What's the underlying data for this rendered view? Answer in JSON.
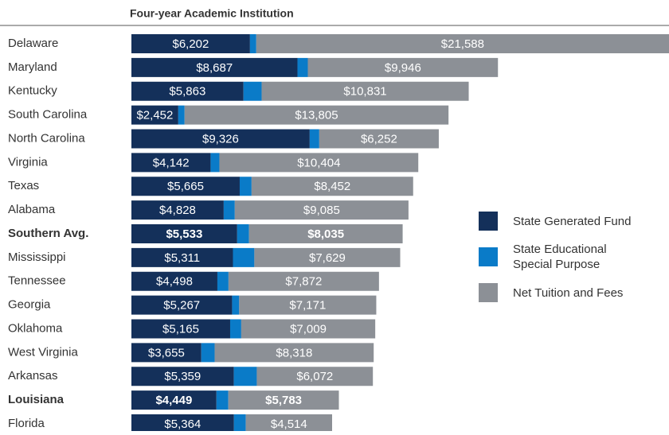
{
  "chart_data": {
    "type": "stacked-bar-horizontal",
    "title": "Four-year Academic Institution",
    "categories": [
      "Delaware",
      "Maryland",
      "Kentucky",
      "South Carolina",
      "North Carolina",
      "Virginia",
      "Texas",
      "Alabama",
      "Southern Avg.",
      "Mississippi",
      "Tennessee",
      "Georgia",
      "Oklahoma",
      "West Virginia",
      "Arkansas",
      "Louisiana",
      "Florida"
    ],
    "highlight": [
      8,
      15
    ],
    "series": [
      {
        "name": "State Generated Fund",
        "color": "#14305a",
        "values": [
          6202,
          8687,
          5863,
          2452,
          9326,
          4142,
          5665,
          4828,
          5533,
          5311,
          4498,
          5267,
          5165,
          3655,
          5359,
          4449,
          5364
        ],
        "value_labels": [
          "$6,202",
          "$8,687",
          "$5,863",
          "$2,452",
          "$9,326",
          "$4,142",
          "$5,665",
          "$4,828",
          "$5,533",
          "$5,311",
          "$4,498",
          "$5,267",
          "$5,165",
          "$3,655",
          "$5,359",
          "$4,449",
          "$5,364"
        ]
      },
      {
        "name": "State Educational Special Purpose",
        "color": "#0a7bc8",
        "values": [
          330,
          540,
          950,
          330,
          500,
          460,
          620,
          580,
          620,
          1120,
          580,
          370,
          580,
          700,
          1200,
          620,
          620
        ]
      },
      {
        "name": "Net Tuition and Fees",
        "color": "#8c9096",
        "values": [
          21588,
          9946,
          10831,
          13805,
          6252,
          10404,
          8452,
          9085,
          8035,
          7629,
          7872,
          7171,
          7009,
          8318,
          6072,
          5783,
          4514
        ],
        "value_labels": [
          "$21,588",
          "$9,946",
          "$10,831",
          "$13,805",
          "$6,252",
          "$10,404",
          "$8,452",
          "$9,085",
          "$8,035",
          "$7,629",
          "$7,872",
          "$7,171",
          "$7,009",
          "$8,318",
          "$6,072",
          "$5,783",
          "$4,514"
        ]
      }
    ]
  }
}
